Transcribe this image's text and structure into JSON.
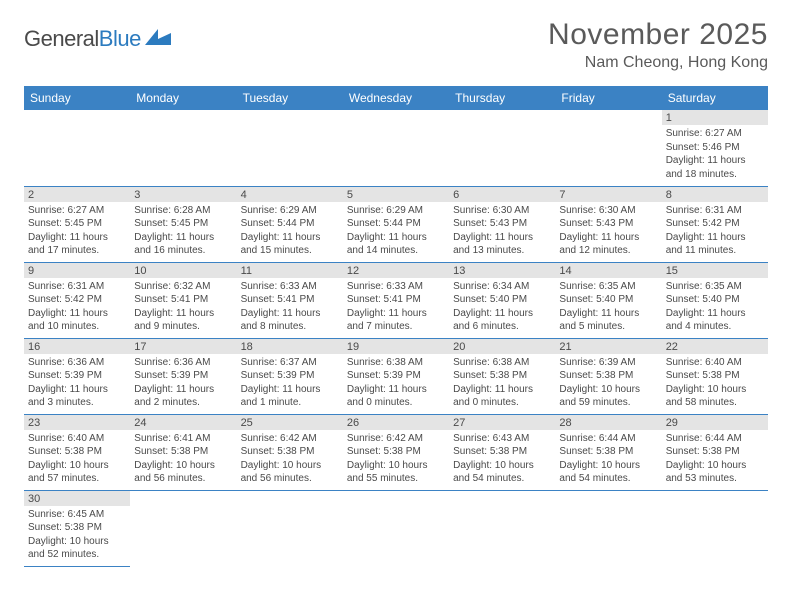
{
  "logo": {
    "word1": "General",
    "word2": "Blue"
  },
  "title": "November 2025",
  "location": "Nam Cheong, Hong Kong",
  "style": {
    "header_bg": "#3b82c4",
    "header_fg": "#ffffff",
    "daynum_bg": "#e4e4e4",
    "text_color": "#4a4a4a",
    "border_color": "#3b82c4",
    "title_fontsize": 30,
    "location_fontsize": 16,
    "header_fontsize": 12,
    "daynum_fontsize": 11,
    "body_fontsize": 10
  },
  "weekdays": [
    "Sunday",
    "Monday",
    "Tuesday",
    "Wednesday",
    "Thursday",
    "Friday",
    "Saturday"
  ],
  "weeks": [
    [
      null,
      null,
      null,
      null,
      null,
      null,
      {
        "n": "1",
        "sr": "Sunrise: 6:27 AM",
        "ss": "Sunset: 5:46 PM",
        "dl": "Daylight: 11 hours and 18 minutes."
      }
    ],
    [
      {
        "n": "2",
        "sr": "Sunrise: 6:27 AM",
        "ss": "Sunset: 5:45 PM",
        "dl": "Daylight: 11 hours and 17 minutes."
      },
      {
        "n": "3",
        "sr": "Sunrise: 6:28 AM",
        "ss": "Sunset: 5:45 PM",
        "dl": "Daylight: 11 hours and 16 minutes."
      },
      {
        "n": "4",
        "sr": "Sunrise: 6:29 AM",
        "ss": "Sunset: 5:44 PM",
        "dl": "Daylight: 11 hours and 15 minutes."
      },
      {
        "n": "5",
        "sr": "Sunrise: 6:29 AM",
        "ss": "Sunset: 5:44 PM",
        "dl": "Daylight: 11 hours and 14 minutes."
      },
      {
        "n": "6",
        "sr": "Sunrise: 6:30 AM",
        "ss": "Sunset: 5:43 PM",
        "dl": "Daylight: 11 hours and 13 minutes."
      },
      {
        "n": "7",
        "sr": "Sunrise: 6:30 AM",
        "ss": "Sunset: 5:43 PM",
        "dl": "Daylight: 11 hours and 12 minutes."
      },
      {
        "n": "8",
        "sr": "Sunrise: 6:31 AM",
        "ss": "Sunset: 5:42 PM",
        "dl": "Daylight: 11 hours and 11 minutes."
      }
    ],
    [
      {
        "n": "9",
        "sr": "Sunrise: 6:31 AM",
        "ss": "Sunset: 5:42 PM",
        "dl": "Daylight: 11 hours and 10 minutes."
      },
      {
        "n": "10",
        "sr": "Sunrise: 6:32 AM",
        "ss": "Sunset: 5:41 PM",
        "dl": "Daylight: 11 hours and 9 minutes."
      },
      {
        "n": "11",
        "sr": "Sunrise: 6:33 AM",
        "ss": "Sunset: 5:41 PM",
        "dl": "Daylight: 11 hours and 8 minutes."
      },
      {
        "n": "12",
        "sr": "Sunrise: 6:33 AM",
        "ss": "Sunset: 5:41 PM",
        "dl": "Daylight: 11 hours and 7 minutes."
      },
      {
        "n": "13",
        "sr": "Sunrise: 6:34 AM",
        "ss": "Sunset: 5:40 PM",
        "dl": "Daylight: 11 hours and 6 minutes."
      },
      {
        "n": "14",
        "sr": "Sunrise: 6:35 AM",
        "ss": "Sunset: 5:40 PM",
        "dl": "Daylight: 11 hours and 5 minutes."
      },
      {
        "n": "15",
        "sr": "Sunrise: 6:35 AM",
        "ss": "Sunset: 5:40 PM",
        "dl": "Daylight: 11 hours and 4 minutes."
      }
    ],
    [
      {
        "n": "16",
        "sr": "Sunrise: 6:36 AM",
        "ss": "Sunset: 5:39 PM",
        "dl": "Daylight: 11 hours and 3 minutes."
      },
      {
        "n": "17",
        "sr": "Sunrise: 6:36 AM",
        "ss": "Sunset: 5:39 PM",
        "dl": "Daylight: 11 hours and 2 minutes."
      },
      {
        "n": "18",
        "sr": "Sunrise: 6:37 AM",
        "ss": "Sunset: 5:39 PM",
        "dl": "Daylight: 11 hours and 1 minute."
      },
      {
        "n": "19",
        "sr": "Sunrise: 6:38 AM",
        "ss": "Sunset: 5:39 PM",
        "dl": "Daylight: 11 hours and 0 minutes."
      },
      {
        "n": "20",
        "sr": "Sunrise: 6:38 AM",
        "ss": "Sunset: 5:38 PM",
        "dl": "Daylight: 11 hours and 0 minutes."
      },
      {
        "n": "21",
        "sr": "Sunrise: 6:39 AM",
        "ss": "Sunset: 5:38 PM",
        "dl": "Daylight: 10 hours and 59 minutes."
      },
      {
        "n": "22",
        "sr": "Sunrise: 6:40 AM",
        "ss": "Sunset: 5:38 PM",
        "dl": "Daylight: 10 hours and 58 minutes."
      }
    ],
    [
      {
        "n": "23",
        "sr": "Sunrise: 6:40 AM",
        "ss": "Sunset: 5:38 PM",
        "dl": "Daylight: 10 hours and 57 minutes."
      },
      {
        "n": "24",
        "sr": "Sunrise: 6:41 AM",
        "ss": "Sunset: 5:38 PM",
        "dl": "Daylight: 10 hours and 56 minutes."
      },
      {
        "n": "25",
        "sr": "Sunrise: 6:42 AM",
        "ss": "Sunset: 5:38 PM",
        "dl": "Daylight: 10 hours and 56 minutes."
      },
      {
        "n": "26",
        "sr": "Sunrise: 6:42 AM",
        "ss": "Sunset: 5:38 PM",
        "dl": "Daylight: 10 hours and 55 minutes."
      },
      {
        "n": "27",
        "sr": "Sunrise: 6:43 AM",
        "ss": "Sunset: 5:38 PM",
        "dl": "Daylight: 10 hours and 54 minutes."
      },
      {
        "n": "28",
        "sr": "Sunrise: 6:44 AM",
        "ss": "Sunset: 5:38 PM",
        "dl": "Daylight: 10 hours and 54 minutes."
      },
      {
        "n": "29",
        "sr": "Sunrise: 6:44 AM",
        "ss": "Sunset: 5:38 PM",
        "dl": "Daylight: 10 hours and 53 minutes."
      }
    ],
    [
      {
        "n": "30",
        "sr": "Sunrise: 6:45 AM",
        "ss": "Sunset: 5:38 PM",
        "dl": "Daylight: 10 hours and 52 minutes."
      },
      null,
      null,
      null,
      null,
      null,
      null
    ]
  ]
}
